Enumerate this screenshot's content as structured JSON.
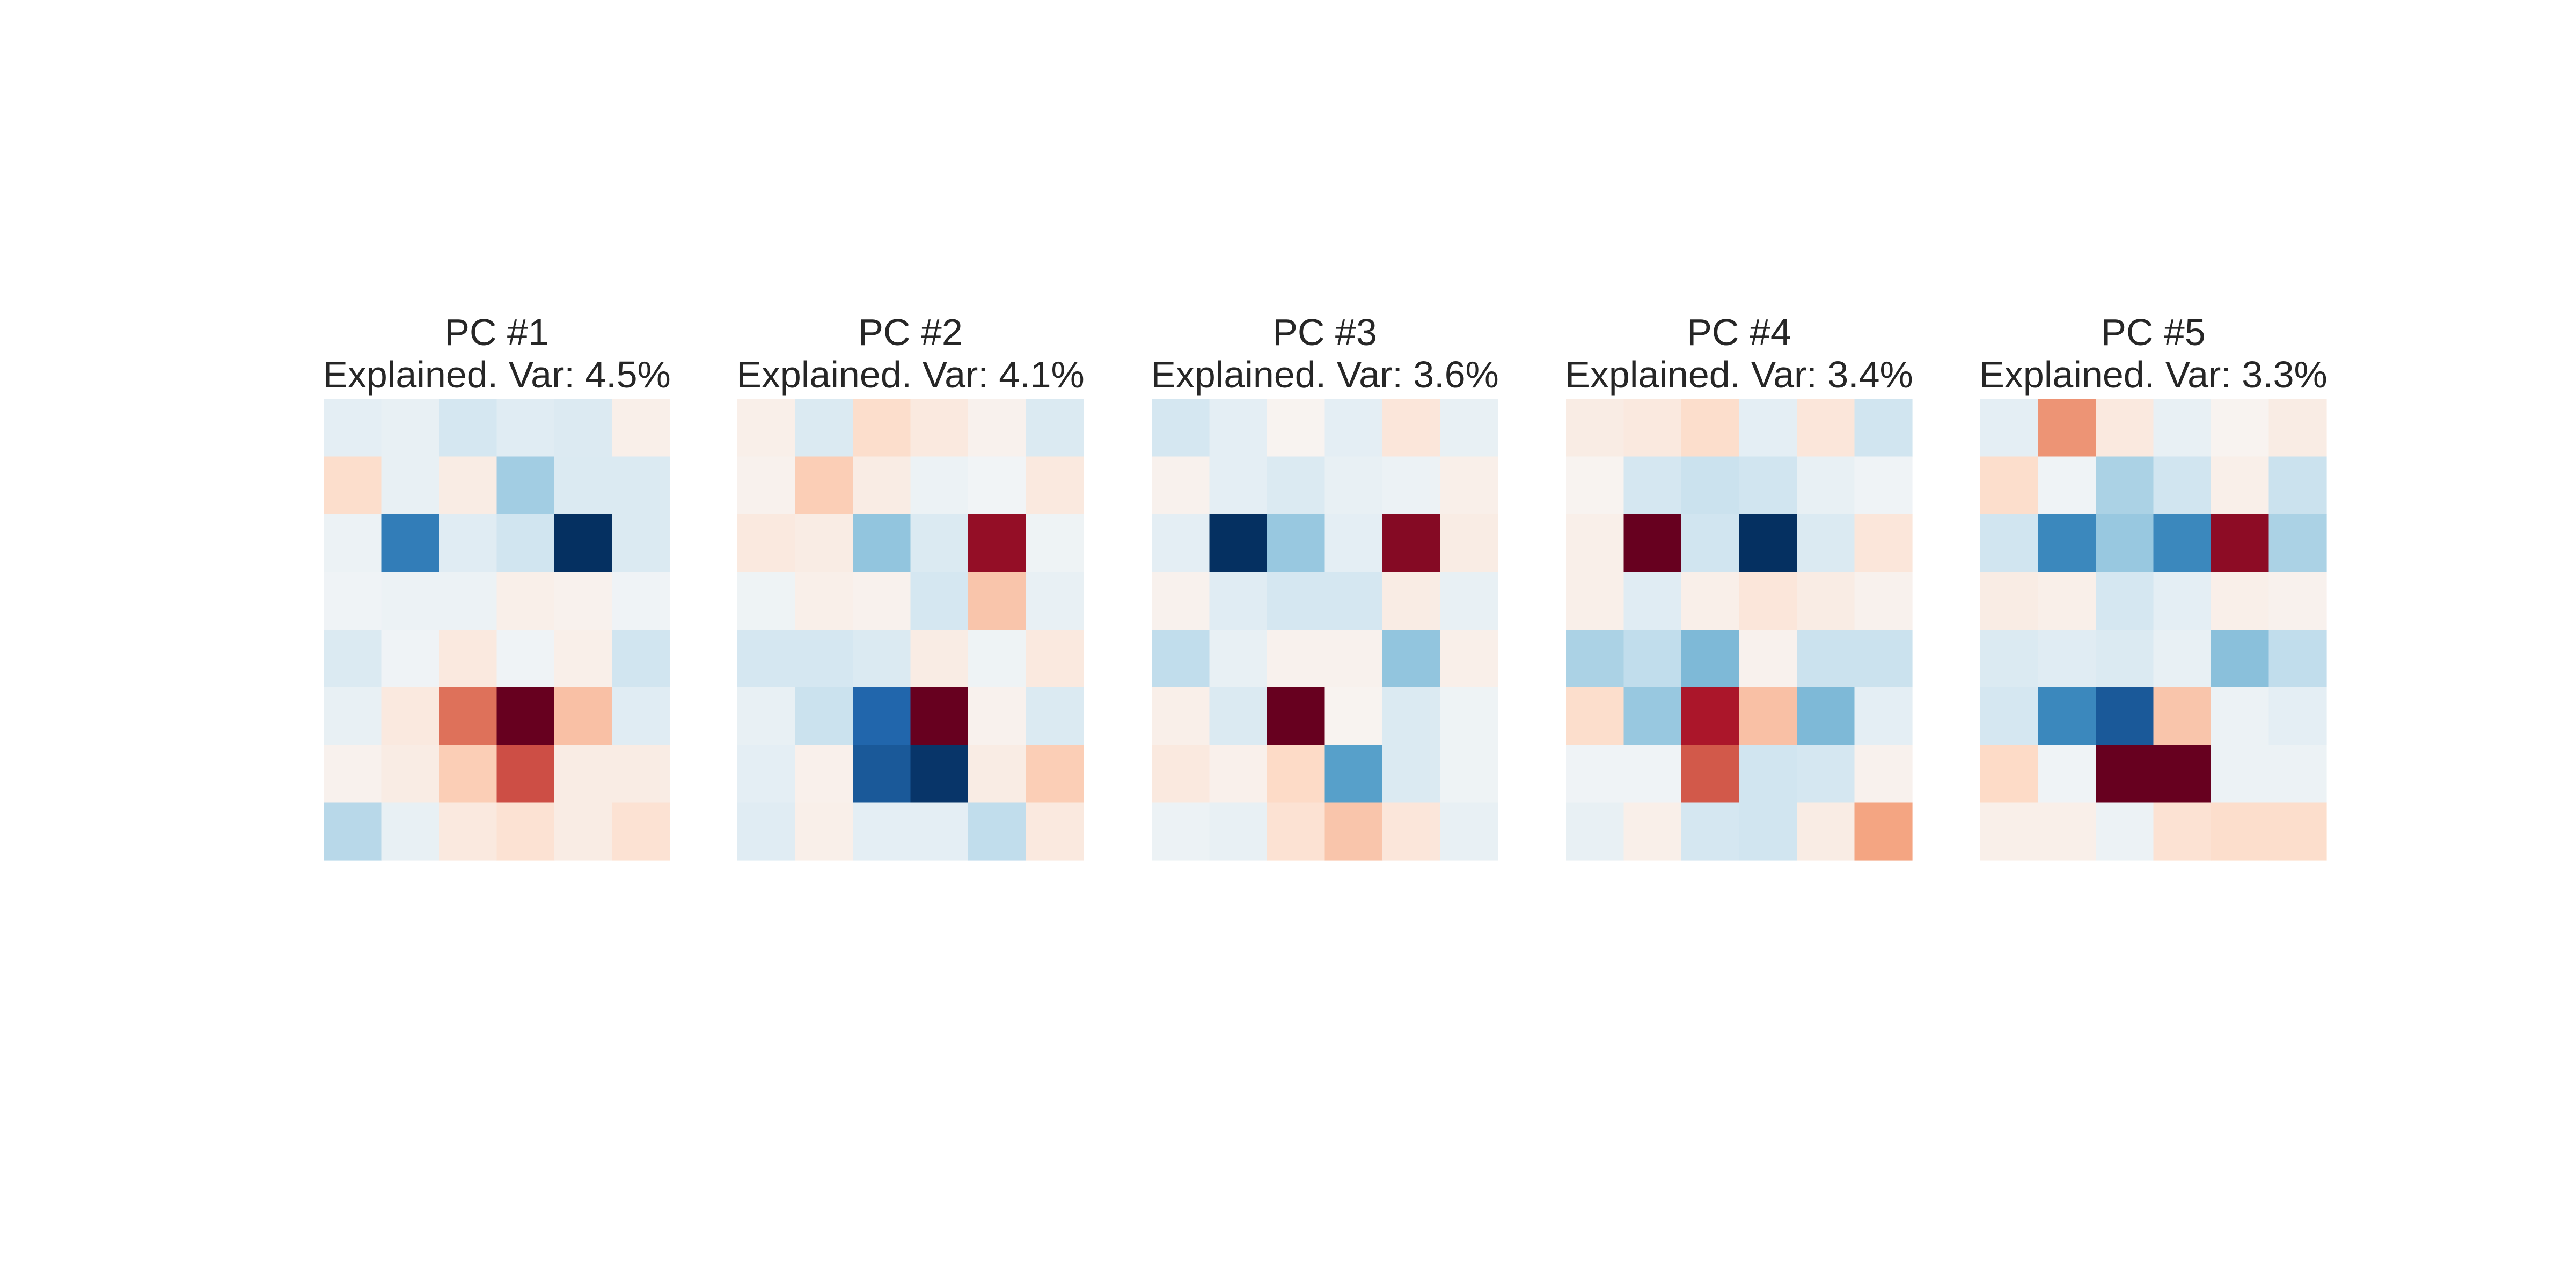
{
  "chart_data": [
    {
      "type": "heatmap",
      "title_line1": "PC #1",
      "title_line2": "Explained. Var: 4.5%",
      "colormap": "RdBu_r",
      "rows": 8,
      "cols": 6,
      "values": [
        [
          -0.1,
          -0.08,
          -0.18,
          -0.12,
          -0.14,
          0.06
        ],
        [
          0.18,
          -0.08,
          0.08,
          -0.35,
          -0.15,
          -0.15
        ],
        [
          -0.06,
          -0.7,
          -0.12,
          -0.2,
          -1.0,
          -0.15
        ],
        [
          -0.04,
          -0.06,
          -0.06,
          0.06,
          0.04,
          -0.04
        ],
        [
          -0.15,
          -0.04,
          0.1,
          -0.04,
          0.06,
          -0.2
        ],
        [
          -0.08,
          0.1,
          0.55,
          1.0,
          0.3,
          -0.12
        ],
        [
          0.04,
          0.08,
          0.25,
          0.65,
          0.08,
          0.08
        ],
        [
          -0.28,
          -0.08,
          0.1,
          0.15,
          0.08,
          0.15
        ]
      ],
      "vmin": -1.0,
      "vmax": 1.0
    },
    {
      "type": "heatmap",
      "title_line1": "PC #2",
      "title_line2": "Explained. Var: 4.1%",
      "colormap": "RdBu_r",
      "rows": 8,
      "cols": 6,
      "values": [
        [
          0.06,
          -0.15,
          0.18,
          0.1,
          0.04,
          -0.15
        ],
        [
          0.04,
          0.25,
          0.08,
          -0.06,
          -0.03,
          0.1
        ],
        [
          0.1,
          0.08,
          -0.4,
          -0.15,
          0.88,
          -0.05
        ],
        [
          -0.05,
          0.06,
          0.04,
          -0.18,
          0.28,
          -0.08
        ],
        [
          -0.18,
          -0.18,
          -0.15,
          0.08,
          -0.05,
          0.1
        ],
        [
          -0.08,
          -0.22,
          -0.8,
          1.0,
          0.04,
          -0.15
        ],
        [
          -0.1,
          0.05,
          -0.85,
          -0.98,
          0.08,
          0.25
        ],
        [
          -0.12,
          0.06,
          -0.1,
          -0.1,
          -0.25,
          0.1
        ]
      ],
      "vmin": -1.0,
      "vmax": 1.0
    },
    {
      "type": "heatmap",
      "title_line1": "PC #3",
      "title_line2": "Explained. Var: 3.6%",
      "colormap": "RdBu_r",
      "rows": 8,
      "cols": 6,
      "values": [
        [
          -0.18,
          -0.1,
          0.03,
          -0.1,
          0.12,
          -0.08
        ],
        [
          0.04,
          -0.1,
          -0.15,
          -0.08,
          -0.06,
          0.06
        ],
        [
          -0.1,
          -1.0,
          -0.38,
          -0.1,
          0.92,
          0.08
        ],
        [
          0.04,
          -0.12,
          -0.18,
          -0.18,
          0.08,
          -0.08
        ],
        [
          -0.25,
          -0.08,
          0.04,
          0.04,
          -0.4,
          0.06
        ],
        [
          0.06,
          -0.15,
          1.0,
          0.03,
          -0.15,
          -0.05
        ],
        [
          0.1,
          0.05,
          0.2,
          -0.55,
          -0.15,
          -0.05
        ],
        [
          -0.06,
          -0.08,
          0.15,
          0.28,
          0.12,
          -0.08
        ]
      ],
      "vmin": -1.0,
      "vmax": 1.0
    },
    {
      "type": "heatmap",
      "title_line1": "PC #4",
      "title_line2": "Explained. Var: 3.4%",
      "colormap": "RdBu_r",
      "rows": 8,
      "cols": 6,
      "values": [
        [
          0.08,
          0.1,
          0.18,
          -0.1,
          0.12,
          -0.2
        ],
        [
          0.03,
          -0.18,
          -0.22,
          -0.2,
          -0.08,
          -0.04
        ],
        [
          0.06,
          1.0,
          -0.2,
          -1.0,
          -0.15,
          0.12
        ],
        [
          0.06,
          -0.12,
          0.06,
          0.12,
          0.08,
          0.04
        ],
        [
          -0.32,
          -0.25,
          -0.45,
          0.04,
          -0.22,
          -0.22
        ],
        [
          0.18,
          -0.38,
          0.82,
          0.3,
          -0.45,
          -0.1
        ],
        [
          -0.04,
          -0.04,
          0.62,
          -0.2,
          -0.18,
          0.04
        ],
        [
          -0.08,
          0.06,
          -0.18,
          -0.2,
          0.08,
          0.4
        ]
      ],
      "vmin": -1.0,
      "vmax": 1.0
    },
    {
      "type": "heatmap",
      "title_line1": "PC #5",
      "title_line2": "Explained. Var: 3.3%",
      "colormap": "RdBu_r",
      "rows": 8,
      "cols": 6,
      "values": [
        [
          -0.1,
          0.45,
          0.1,
          -0.08,
          0.03,
          0.08
        ],
        [
          0.18,
          -0.04,
          -0.32,
          -0.2,
          0.06,
          -0.22
        ],
        [
          -0.2,
          -0.65,
          -0.38,
          -0.65,
          0.9,
          -0.32
        ],
        [
          0.08,
          0.06,
          -0.18,
          -0.1,
          0.06,
          0.04
        ],
        [
          -0.15,
          -0.12,
          -0.15,
          -0.08,
          -0.42,
          -0.25
        ],
        [
          -0.18,
          -0.65,
          -0.85,
          0.28,
          -0.06,
          -0.1
        ],
        [
          0.2,
          -0.04,
          1.0,
          1.0,
          -0.06,
          -0.06
        ],
        [
          0.06,
          0.06,
          -0.06,
          0.15,
          0.18,
          0.18
        ]
      ],
      "vmin": -1.0,
      "vmax": 1.0
    }
  ]
}
